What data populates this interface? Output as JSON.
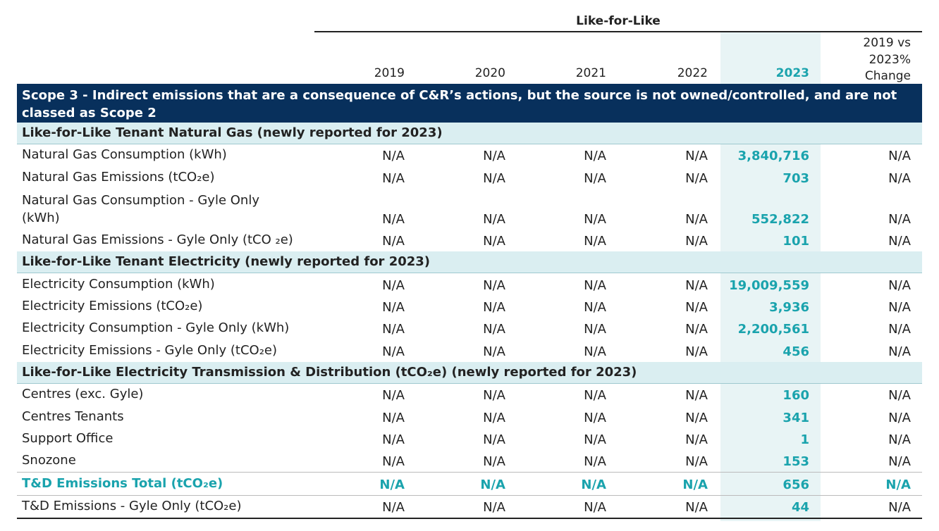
{
  "header": {
    "group_title": "Like-for-Like",
    "years": [
      "2019",
      "2020",
      "2021",
      "2022",
      "2023"
    ],
    "change_label": "2019 vs 2023% Change",
    "change_lines": [
      "2019 vs",
      "2023%",
      "Change"
    ]
  },
  "scope_title": "Scope 3 - Indirect emissions that are a consequence of C&R’s actions, but the source is not owned/controlled, and are not classed as Scope 2",
  "sections": [
    {
      "title": "Like-for-Like Tenant Natural Gas (newly reported for 2023)",
      "rows": [
        {
          "label": "Natural Gas Consumption (kWh)",
          "values": [
            "N/A",
            "N/A",
            "N/A",
            "N/A",
            "3,840,716",
            "N/A"
          ]
        },
        {
          "label": "Natural Gas Emissions (tCO₂e)",
          "values": [
            "N/A",
            "N/A",
            "N/A",
            "N/A",
            "703",
            "N/A"
          ]
        },
        {
          "label": "Natural Gas Consumption - Gyle Only (kWh)",
          "label_lines": [
            "Natural Gas Consumption - Gyle Only",
            "(kWh)"
          ],
          "values": [
            "N/A",
            "N/A",
            "N/A",
            "N/A",
            "552,822",
            "N/A"
          ]
        },
        {
          "label": "Natural Gas Emissions - Gyle Only (tCO ₂e)",
          "values": [
            "N/A",
            "N/A",
            "N/A",
            "N/A",
            "101",
            "N/A"
          ]
        }
      ]
    },
    {
      "title": "Like-for-Like Tenant Electricity (newly reported for 2023)",
      "rows": [
        {
          "label": "Electricity Consumption (kWh)",
          "values": [
            "N/A",
            "N/A",
            "N/A",
            "N/A",
            "19,009,559",
            "N/A"
          ]
        },
        {
          "label": "Electricity Emissions (tCO₂e)",
          "values": [
            "N/A",
            "N/A",
            "N/A",
            "N/A",
            "3,936",
            "N/A"
          ]
        },
        {
          "label": "Electricity Consumption - Gyle Only (kWh)",
          "values": [
            "N/A",
            "N/A",
            "N/A",
            "N/A",
            "2,200,561",
            "N/A"
          ]
        },
        {
          "label": "Electricity Emissions - Gyle Only (tCO₂e)",
          "values": [
            "N/A",
            "N/A",
            "N/A",
            "N/A",
            "456",
            "N/A"
          ]
        }
      ]
    },
    {
      "title": "Like-for-Like Electricity Transmission & Distribution (tCO₂e) (newly reported for 2023)",
      "rows": [
        {
          "label": "Centres (exc. Gyle)",
          "values": [
            "N/A",
            "N/A",
            "N/A",
            "N/A",
            "160",
            "N/A"
          ]
        },
        {
          "label": "Centres Tenants",
          "values": [
            "N/A",
            "N/A",
            "N/A",
            "N/A",
            "341",
            "N/A"
          ]
        },
        {
          "label": "Support Office",
          "values": [
            "N/A",
            "N/A",
            "N/A",
            "N/A",
            "1",
            "N/A"
          ]
        },
        {
          "label": "Snozone",
          "values": [
            "N/A",
            "N/A",
            "N/A",
            "N/A",
            "153",
            "N/A"
          ]
        },
        {
          "label": "T&D Emissions Total (tCO₂e)",
          "values": [
            "N/A",
            "N/A",
            "N/A",
            "N/A",
            "656",
            "N/A"
          ],
          "total": true
        },
        {
          "label": "T&D Emissions - Gyle Only (tCO₂e)",
          "values": [
            "N/A",
            "N/A",
            "N/A",
            "N/A",
            "44",
            "N/A"
          ]
        }
      ]
    }
  ],
  "colors": {
    "scope_bg": "#08305c",
    "section_bg": "#daeef1",
    "accent": "#1aa3ad",
    "highlight_col": "#e8f4f5"
  }
}
